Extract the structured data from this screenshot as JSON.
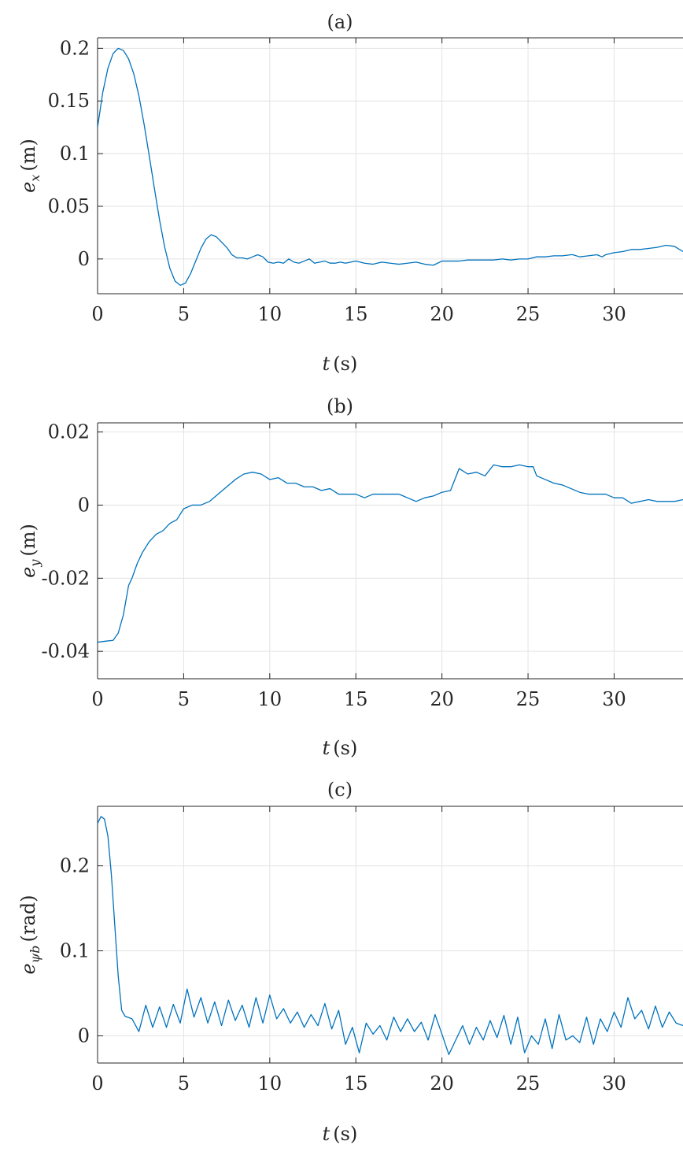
{
  "colors": {
    "line": "#0072BD",
    "axis": "#262626",
    "grid": "#e3e3e3"
  },
  "chart_data": [
    {
      "type": "line",
      "title": "(a)",
      "xlabel": {
        "var": "t",
        "unit": "(s)"
      },
      "ylabel": {
        "base": "e",
        "sub": "x",
        "unit": "(m)"
      },
      "xlim": [
        0,
        34
      ],
      "ylim": [
        -0.033,
        0.21
      ],
      "xticks": [
        0,
        5,
        10,
        15,
        20,
        25,
        30
      ],
      "yticks": [
        0,
        0.05,
        0.1,
        0.15,
        0.2
      ],
      "xtick_labels": [
        "0",
        "5",
        "10",
        "15",
        "20",
        "25",
        "30"
      ],
      "ytick_labels": [
        "0",
        "0.05",
        "0.1",
        "0.15",
        "0.2"
      ],
      "grid": true,
      "series": [
        {
          "x": [
            0,
            0.3,
            0.6,
            0.9,
            1.2,
            1.5,
            1.8,
            2.1,
            2.4,
            2.7,
            3.0,
            3.3,
            3.6,
            3.9,
            4.2,
            4.5,
            4.8,
            5.1,
            5.4,
            5.7,
            6.0,
            6.3,
            6.6,
            6.9,
            7.2,
            7.5,
            7.8,
            8.1,
            8.4,
            8.7,
            9.0,
            9.3,
            9.6,
            9.9,
            10.2,
            10.5,
            10.8,
            11.1,
            11.4,
            11.7,
            12.0,
            12.3,
            12.6,
            12.9,
            13.2,
            13.5,
            13.8,
            14.1,
            14.4,
            14.7,
            15.0,
            15.5,
            16.0,
            16.5,
            17.0,
            17.5,
            18.0,
            18.5,
            19.0,
            19.5,
            20.0,
            20.5,
            21.0,
            21.5,
            22.0,
            22.5,
            23.0,
            23.5,
            24.0,
            24.5,
            25.0,
            25.5,
            26.0,
            26.5,
            27.0,
            27.5,
            27.6,
            28.0,
            28.5,
            29.0,
            29.3,
            29.5,
            30.0,
            30.5,
            31.0,
            31.5,
            32.0,
            32.5,
            33.0,
            33.5,
            34.0
          ],
          "y": [
            0.125,
            0.158,
            0.181,
            0.195,
            0.2,
            0.198,
            0.19,
            0.176,
            0.155,
            0.128,
            0.098,
            0.067,
            0.037,
            0.011,
            -0.009,
            -0.021,
            -0.025,
            -0.023,
            -0.014,
            -0.002,
            0.01,
            0.019,
            0.023,
            0.021,
            0.016,
            0.011,
            0.004,
            0.001,
            0.001,
            0.0,
            0.002,
            0.004,
            0.002,
            -0.003,
            -0.004,
            -0.003,
            -0.004,
            0.0,
            -0.003,
            -0.004,
            -0.002,
            0.0,
            -0.004,
            -0.003,
            -0.002,
            -0.004,
            -0.004,
            -0.003,
            -0.004,
            -0.003,
            -0.002,
            -0.004,
            -0.005,
            -0.003,
            -0.004,
            -0.005,
            -0.004,
            -0.003,
            -0.005,
            -0.006,
            -0.002,
            -0.002,
            -0.002,
            -0.001,
            -0.001,
            -0.001,
            -0.001,
            0.0,
            -0.001,
            0.0,
            0.0,
            0.002,
            0.002,
            0.003,
            0.003,
            0.004,
            0.004,
            0.002,
            0.003,
            0.004,
            0.002,
            0.004,
            0.006,
            0.007,
            0.009,
            0.009,
            0.01,
            0.011,
            0.013,
            0.012,
            0.007
          ]
        }
      ]
    },
    {
      "type": "line",
      "title": "(b)",
      "xlabel": {
        "var": "t",
        "unit": "(s)"
      },
      "ylabel": {
        "base": "e",
        "sub": "y",
        "unit": "(m)"
      },
      "xlim": [
        0,
        34
      ],
      "ylim": [
        -0.0475,
        0.0225
      ],
      "xticks": [
        0,
        5,
        10,
        15,
        20,
        25,
        30
      ],
      "yticks": [
        -0.04,
        -0.02,
        0,
        0.02
      ],
      "xtick_labels": [
        "0",
        "5",
        "10",
        "15",
        "20",
        "25",
        "30"
      ],
      "ytick_labels": [
        "-0.04",
        "-0.02",
        "0",
        "0.02"
      ],
      "grid": true,
      "series": [
        {
          "x": [
            0,
            0.5,
            0.9,
            1.2,
            1.5,
            1.8,
            2.0,
            2.3,
            2.6,
            3.0,
            3.4,
            3.8,
            4.2,
            4.6,
            5.0,
            5.5,
            6.0,
            6.5,
            7.0,
            7.5,
            8.0,
            8.5,
            9.0,
            9.5,
            10.0,
            10.5,
            11.0,
            11.5,
            12.0,
            12.5,
            13.0,
            13.5,
            14.0,
            14.5,
            15.0,
            15.5,
            16.0,
            16.5,
            17.0,
            17.5,
            18.0,
            18.5,
            19.0,
            19.5,
            20.0,
            20.5,
            21.0,
            21.5,
            22.0,
            22.5,
            23.0,
            23.5,
            24.0,
            24.5,
            25.0,
            25.3,
            25.5,
            26.0,
            26.5,
            27.0,
            27.5,
            28.0,
            28.5,
            29.0,
            29.5,
            30.0,
            30.5,
            31.0,
            31.5,
            32.0,
            32.5,
            33.0,
            33.5,
            34.0
          ],
          "y": [
            -0.0375,
            -0.0372,
            -0.037,
            -0.035,
            -0.03,
            -0.022,
            -0.02,
            -0.016,
            -0.013,
            -0.01,
            -0.008,
            -0.007,
            -0.005,
            -0.004,
            -0.001,
            0.0,
            0.0,
            0.001,
            0.003,
            0.005,
            0.007,
            0.0085,
            0.009,
            0.0085,
            0.007,
            0.0075,
            0.006,
            0.006,
            0.005,
            0.005,
            0.004,
            0.0045,
            0.003,
            0.003,
            0.003,
            0.002,
            0.003,
            0.003,
            0.003,
            0.003,
            0.002,
            0.001,
            0.002,
            0.0025,
            0.0035,
            0.004,
            0.01,
            0.0085,
            0.009,
            0.008,
            0.011,
            0.0105,
            0.0105,
            0.011,
            0.0105,
            0.0105,
            0.008,
            0.007,
            0.006,
            0.0055,
            0.0045,
            0.0035,
            0.003,
            0.003,
            0.003,
            0.002,
            0.002,
            0.0005,
            0.001,
            0.0015,
            0.001,
            0.001,
            0.001,
            0.0015
          ]
        }
      ]
    },
    {
      "type": "line",
      "title": "(c)",
      "xlabel": {
        "var": "t",
        "unit": "(s)"
      },
      "ylabel": {
        "base": "e",
        "sub": "ψb",
        "unit": "(rad)"
      },
      "xlim": [
        0,
        34
      ],
      "ylim": [
        -0.032,
        0.27
      ],
      "xticks": [
        0,
        5,
        10,
        15,
        20,
        25,
        30
      ],
      "yticks": [
        0,
        0.1,
        0.2
      ],
      "xtick_labels": [
        "0",
        "5",
        "10",
        "15",
        "20",
        "25",
        "30"
      ],
      "ytick_labels": [
        "0",
        "0.1",
        "0.2"
      ],
      "grid": true,
      "series": [
        {
          "x": [
            0,
            0.2,
            0.4,
            0.6,
            0.8,
            1.0,
            1.2,
            1.4,
            1.6,
            2.0,
            2.4,
            2.8,
            3.2,
            3.6,
            4.0,
            4.4,
            4.8,
            5.2,
            5.6,
            6.0,
            6.4,
            6.8,
            7.2,
            7.6,
            8.0,
            8.4,
            8.8,
            9.2,
            9.6,
            10.0,
            10.4,
            10.8,
            11.2,
            11.6,
            12.0,
            12.4,
            12.8,
            13.2,
            13.6,
            14.0,
            14.4,
            14.8,
            15.2,
            15.6,
            16.0,
            16.4,
            16.8,
            17.2,
            17.6,
            18.0,
            18.4,
            18.8,
            19.2,
            19.6,
            20.0,
            20.4,
            20.8,
            21.2,
            21.6,
            22.0,
            22.4,
            22.8,
            23.2,
            23.6,
            24.0,
            24.4,
            24.8,
            25.2,
            25.6,
            26.0,
            26.4,
            26.8,
            27.2,
            27.6,
            28.0,
            28.4,
            28.8,
            29.2,
            29.6,
            30.0,
            30.4,
            30.8,
            31.2,
            31.6,
            32.0,
            32.4,
            32.8,
            33.2,
            33.6,
            34.0
          ],
          "y": [
            0.25,
            0.258,
            0.255,
            0.235,
            0.19,
            0.13,
            0.07,
            0.03,
            0.023,
            0.02,
            0.005,
            0.036,
            0.01,
            0.034,
            0.01,
            0.037,
            0.015,
            0.055,
            0.022,
            0.045,
            0.015,
            0.04,
            0.012,
            0.042,
            0.018,
            0.036,
            0.01,
            0.045,
            0.015,
            0.048,
            0.02,
            0.032,
            0.015,
            0.028,
            0.01,
            0.025,
            0.012,
            0.038,
            0.008,
            0.03,
            -0.01,
            0.01,
            -0.02,
            0.015,
            0.002,
            0.012,
            -0.005,
            0.022,
            0.005,
            0.02,
            0.005,
            0.016,
            -0.005,
            0.025,
            0.002,
            -0.022,
            -0.005,
            0.012,
            -0.01,
            0.01,
            -0.005,
            0.018,
            -0.002,
            0.024,
            -0.01,
            0.022,
            -0.02,
            0.0,
            -0.01,
            0.02,
            -0.015,
            0.025,
            -0.005,
            0.0,
            -0.008,
            0.022,
            -0.01,
            0.02,
            0.005,
            0.028,
            0.01,
            0.045,
            0.02,
            0.03,
            0.008,
            0.035,
            0.01,
            0.028,
            0.015,
            0.012
          ]
        }
      ]
    }
  ]
}
